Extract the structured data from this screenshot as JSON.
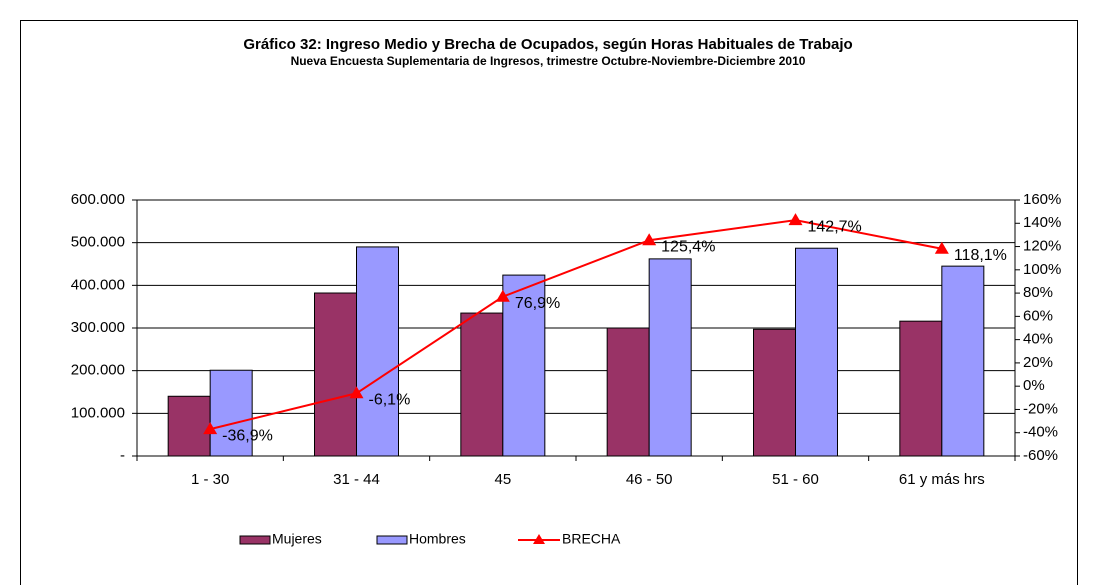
{
  "chart_data": {
    "type": "bar_line",
    "title": "Gráfico 32: Ingreso Medio y Brecha de Ocupados, según Horas Habituales de Trabajo",
    "subtitle": "Nueva Encuesta Suplementaria de Ingresos, trimestre Octubre-Noviembre-Diciembre 2010",
    "categories": [
      "1 - 30",
      "31 - 44",
      "45",
      "46 - 50",
      "51 - 60",
      "61 y más hrs"
    ],
    "series": [
      {
        "name": "Mujeres",
        "color": "#993366",
        "type": "bar",
        "values": [
          140000,
          382000,
          335000,
          300000,
          297000,
          316000
        ]
      },
      {
        "name": "Hombres",
        "color": "#9999ff",
        "type": "bar",
        "values": [
          201000,
          490000,
          424000,
          462000,
          487000,
          445000
        ]
      },
      {
        "name": "BRECHA",
        "color": "#ff0000",
        "type": "line",
        "axis": "y2",
        "values": [
          -36.9,
          -6.1,
          76.9,
          125.4,
          142.7,
          118.1
        ],
        "value_labels": [
          "-36,9%",
          "-6,1%",
          "76,9%",
          "125,4%",
          "142,7%",
          "118,1%"
        ]
      }
    ],
    "ylim": [
      0,
      600000
    ],
    "yticks": [
      {
        "value": 0,
        "label": "-"
      },
      {
        "value": 100000,
        "label": "100.000"
      },
      {
        "value": 200000,
        "label": "200.000"
      },
      {
        "value": 300000,
        "label": "300.000"
      },
      {
        "value": 400000,
        "label": "400.000"
      },
      {
        "value": 500000,
        "label": "500.000"
      },
      {
        "value": 600000,
        "label": "600.000"
      }
    ],
    "y2lim": [
      -60,
      160
    ],
    "y2ticks": [
      {
        "value": -60,
        "label": "-60%"
      },
      {
        "value": -40,
        "label": "-40%"
      },
      {
        "value": -20,
        "label": "-20%"
      },
      {
        "value": 0,
        "label": "0%"
      },
      {
        "value": 20,
        "label": "20%"
      },
      {
        "value": 40,
        "label": "40%"
      },
      {
        "value": 60,
        "label": "60%"
      },
      {
        "value": 80,
        "label": "80%"
      },
      {
        "value": 100,
        "label": "100%"
      },
      {
        "value": 120,
        "label": "120%"
      },
      {
        "value": 140,
        "label": "140%"
      },
      {
        "value": 160,
        "label": "160%"
      }
    ],
    "grid": true,
    "legend": "bottom"
  }
}
